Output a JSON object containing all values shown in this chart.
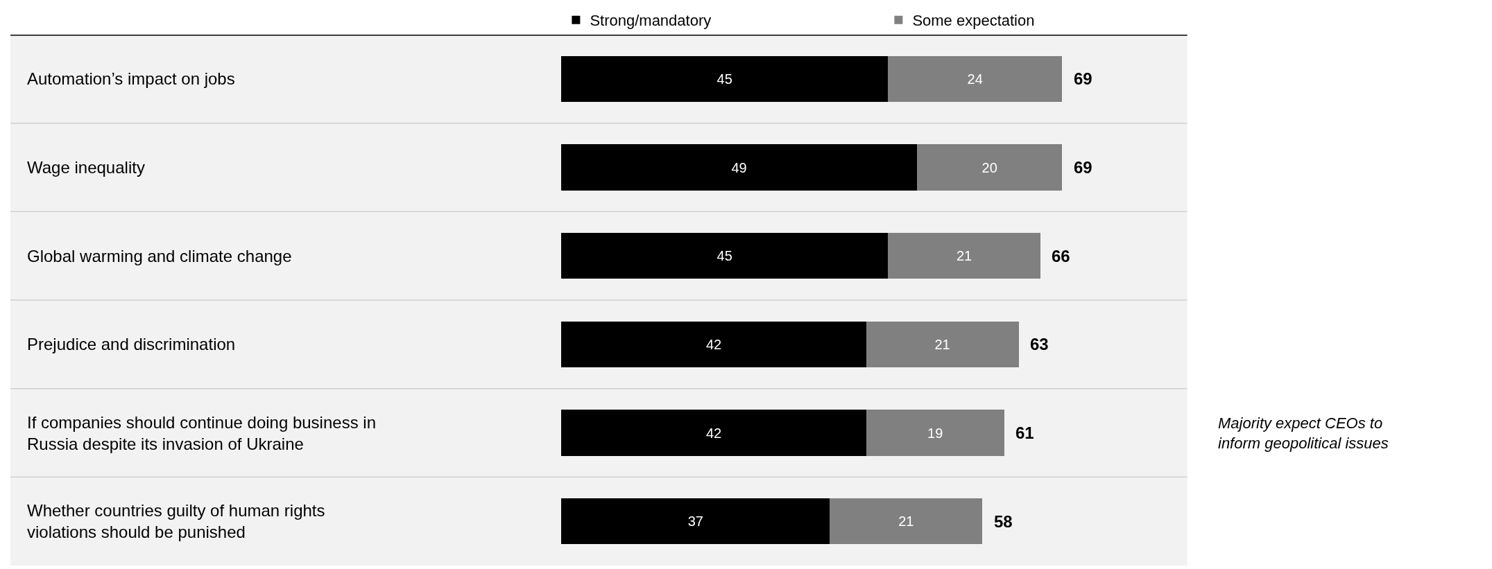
{
  "chart_data": {
    "type": "bar",
    "orientation": "horizontal",
    "stacked": true,
    "data_labels": true,
    "legend": "top",
    "categories": [
      "Automation’s impact on jobs",
      "Wage inequality",
      "Global warming and climate change",
      "Prejudice and discrimination",
      "If companies should continue doing business in Russia despite its invasion of Ukraine",
      "Whether countries guilty of human rights violations should be punished"
    ],
    "series": [
      {
        "name": "Strong/mandatory",
        "color": "#000000",
        "values": [
          45,
          49,
          45,
          42,
          42,
          37
        ]
      },
      {
        "name": "Some expectation",
        "color": "#808080",
        "values": [
          24,
          20,
          21,
          21,
          19,
          21
        ]
      }
    ],
    "totals": [
      "69",
      "69",
      "66",
      "63",
      "61",
      "58"
    ],
    "annotations": [
      "Majority expect CEOs to inform geopolitical issues"
    ]
  }
}
